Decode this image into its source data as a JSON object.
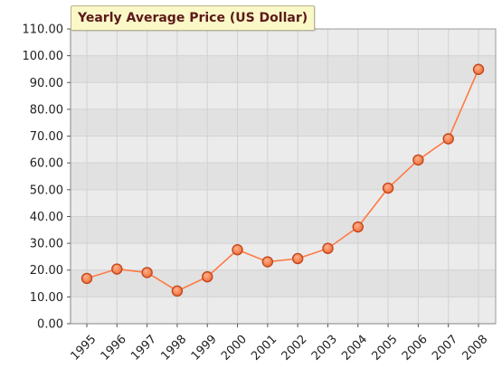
{
  "chart_data": {
    "type": "line",
    "title": "Yearly Average Price (US Dollar)",
    "xlabel": "",
    "ylabel": "",
    "categories": [
      "1995",
      "1996",
      "1997",
      "1998",
      "1999",
      "2000",
      "2001",
      "2002",
      "2003",
      "2004",
      "2005",
      "2006",
      "2007",
      "2008"
    ],
    "y_tick_labels": [
      "0.00",
      "10.00",
      "20.00",
      "30.00",
      "40.00",
      "50.00",
      "60.00",
      "70.00",
      "80.00",
      "90.00",
      "100.00",
      "110.00"
    ],
    "ylim": [
      0,
      110
    ],
    "grid": true,
    "legend": "none",
    "series": [
      {
        "values": [
          16.9,
          20.4,
          19.1,
          12.2,
          17.5,
          27.6,
          23.1,
          24.3,
          28.1,
          36.1,
          50.6,
          61.1,
          69.0,
          94.9
        ],
        "line_color": "#ff7a45",
        "marker_fill": "#f0703a",
        "marker_stroke": "#c2461d"
      }
    ],
    "colors": {
      "band_light": "#ebebeb",
      "band_dark": "#e1e1e1",
      "grid": "#d2d2d2",
      "frame": "#9a9a9a",
      "tick": "#555555"
    }
  }
}
